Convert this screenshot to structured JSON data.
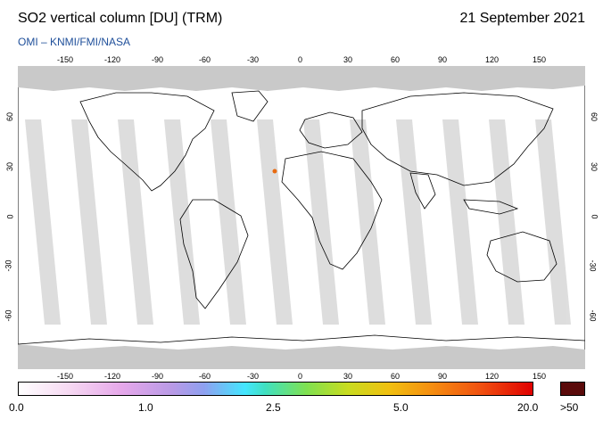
{
  "header": {
    "title": "SO2 vertical column [DU] (TRM)",
    "date": "21 September 2021",
    "source": "OMI  –  KNMI/FMI/NASA"
  },
  "map": {
    "lon_ticks": [
      "-150",
      "-120",
      "-90",
      "-60",
      "-30",
      "0",
      "30",
      "60",
      "90",
      "120",
      "150"
    ],
    "lat_ticks": [
      "60",
      "30",
      "0",
      "-30",
      "-60"
    ],
    "colors": {
      "land": "#c9c9c9",
      "gap": "#dcdcdc",
      "swath": "#ffffff",
      "coast": "#000000"
    }
  },
  "colorbar": {
    "labels": [
      "0.0",
      "1.0",
      "2.5",
      "5.0",
      "20.0"
    ],
    "over_label": ">50",
    "over_color": "#5a0a0a"
  }
}
